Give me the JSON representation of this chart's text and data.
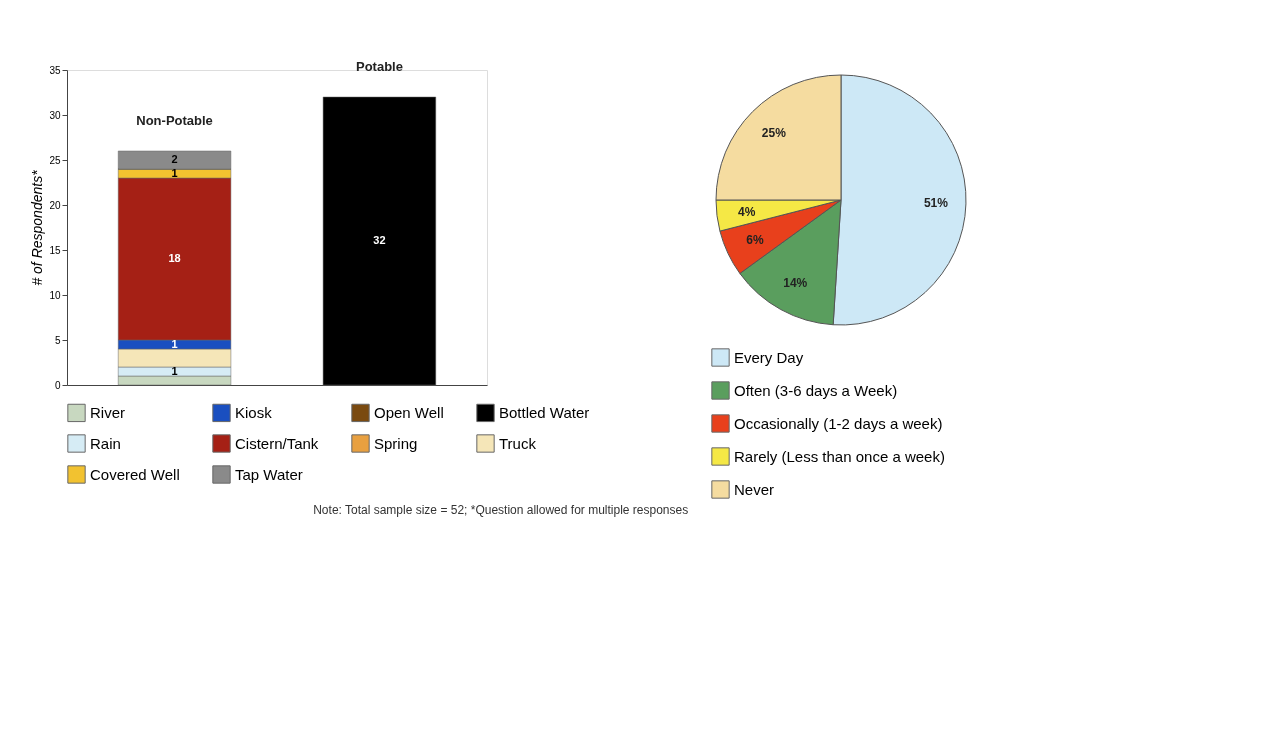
{
  "chart_data": [
    {
      "type": "bar",
      "stacked": true,
      "categories": [
        "Non-Potable",
        "Potable"
      ],
      "ylabel": "# of Respondents*",
      "ylim": [
        0,
        35
      ],
      "yticks": [
        0,
        5,
        10,
        15,
        20,
        25,
        30,
        35
      ],
      "tick_labels": "y",
      "legend": "bottom",
      "grid": false,
      "series": [
        {
          "name": "River",
          "color": "#c8d8c0",
          "values": [
            1,
            null
          ],
          "value_labels": [
            null,
            null
          ]
        },
        {
          "name": "Rain",
          "color": "#d6ecf5",
          "values": [
            1,
            null
          ],
          "value_labels": [
            "1",
            null
          ]
        },
        {
          "name": "Truck",
          "color": "#f5e6b8",
          "values": [
            2,
            null
          ],
          "value_labels": [
            null,
            null
          ]
        },
        {
          "name": "Kiosk",
          "color": "#1a4fc0",
          "values": [
            1,
            null
          ],
          "value_labels": [
            "1",
            null
          ]
        },
        {
          "name": "Cistern/Tank",
          "color": "#a52015",
          "values": [
            18,
            null
          ],
          "value_labels": [
            "18",
            null
          ]
        },
        {
          "name": "Covered Well",
          "color": "#f2c230",
          "values": [
            1,
            null
          ],
          "value_labels": [
            "1",
            null
          ]
        },
        {
          "name": "Open Well",
          "color": "#7a4a10",
          "values": [
            0,
            null
          ],
          "value_labels": [
            null,
            null
          ]
        },
        {
          "name": "Spring",
          "color": "#e8a040",
          "values": [
            0,
            null
          ],
          "value_labels": [
            null,
            null
          ]
        },
        {
          "name": "Tap Water",
          "color": "#8a8a8a",
          "values": [
            2,
            null
          ],
          "value_labels": [
            "2",
            null
          ]
        },
        {
          "name": "Bottled Water",
          "color": "#000000",
          "values": [
            null,
            32
          ],
          "value_labels": [
            null,
            "32"
          ]
        }
      ],
      "annotations": [
        "Note:  Total sample size = 52; *Question allowed for multiple responses"
      ]
    },
    {
      "type": "pie",
      "legend": "bottom",
      "categories": [
        "Every Day",
        "Often (3-6 days a Week)",
        "Occasionally (1-2 days a week)",
        "Rarely (Less than once a week)",
        "Never"
      ],
      "values": [
        51,
        14,
        6,
        4,
        25
      ],
      "colors": [
        "#cde8f6",
        "#5a9e5e",
        "#e8401c",
        "#f5e845",
        "#f5dca0"
      ],
      "value_labels": [
        "51%",
        "14%",
        "6%",
        "4%",
        "25%"
      ]
    }
  ]
}
